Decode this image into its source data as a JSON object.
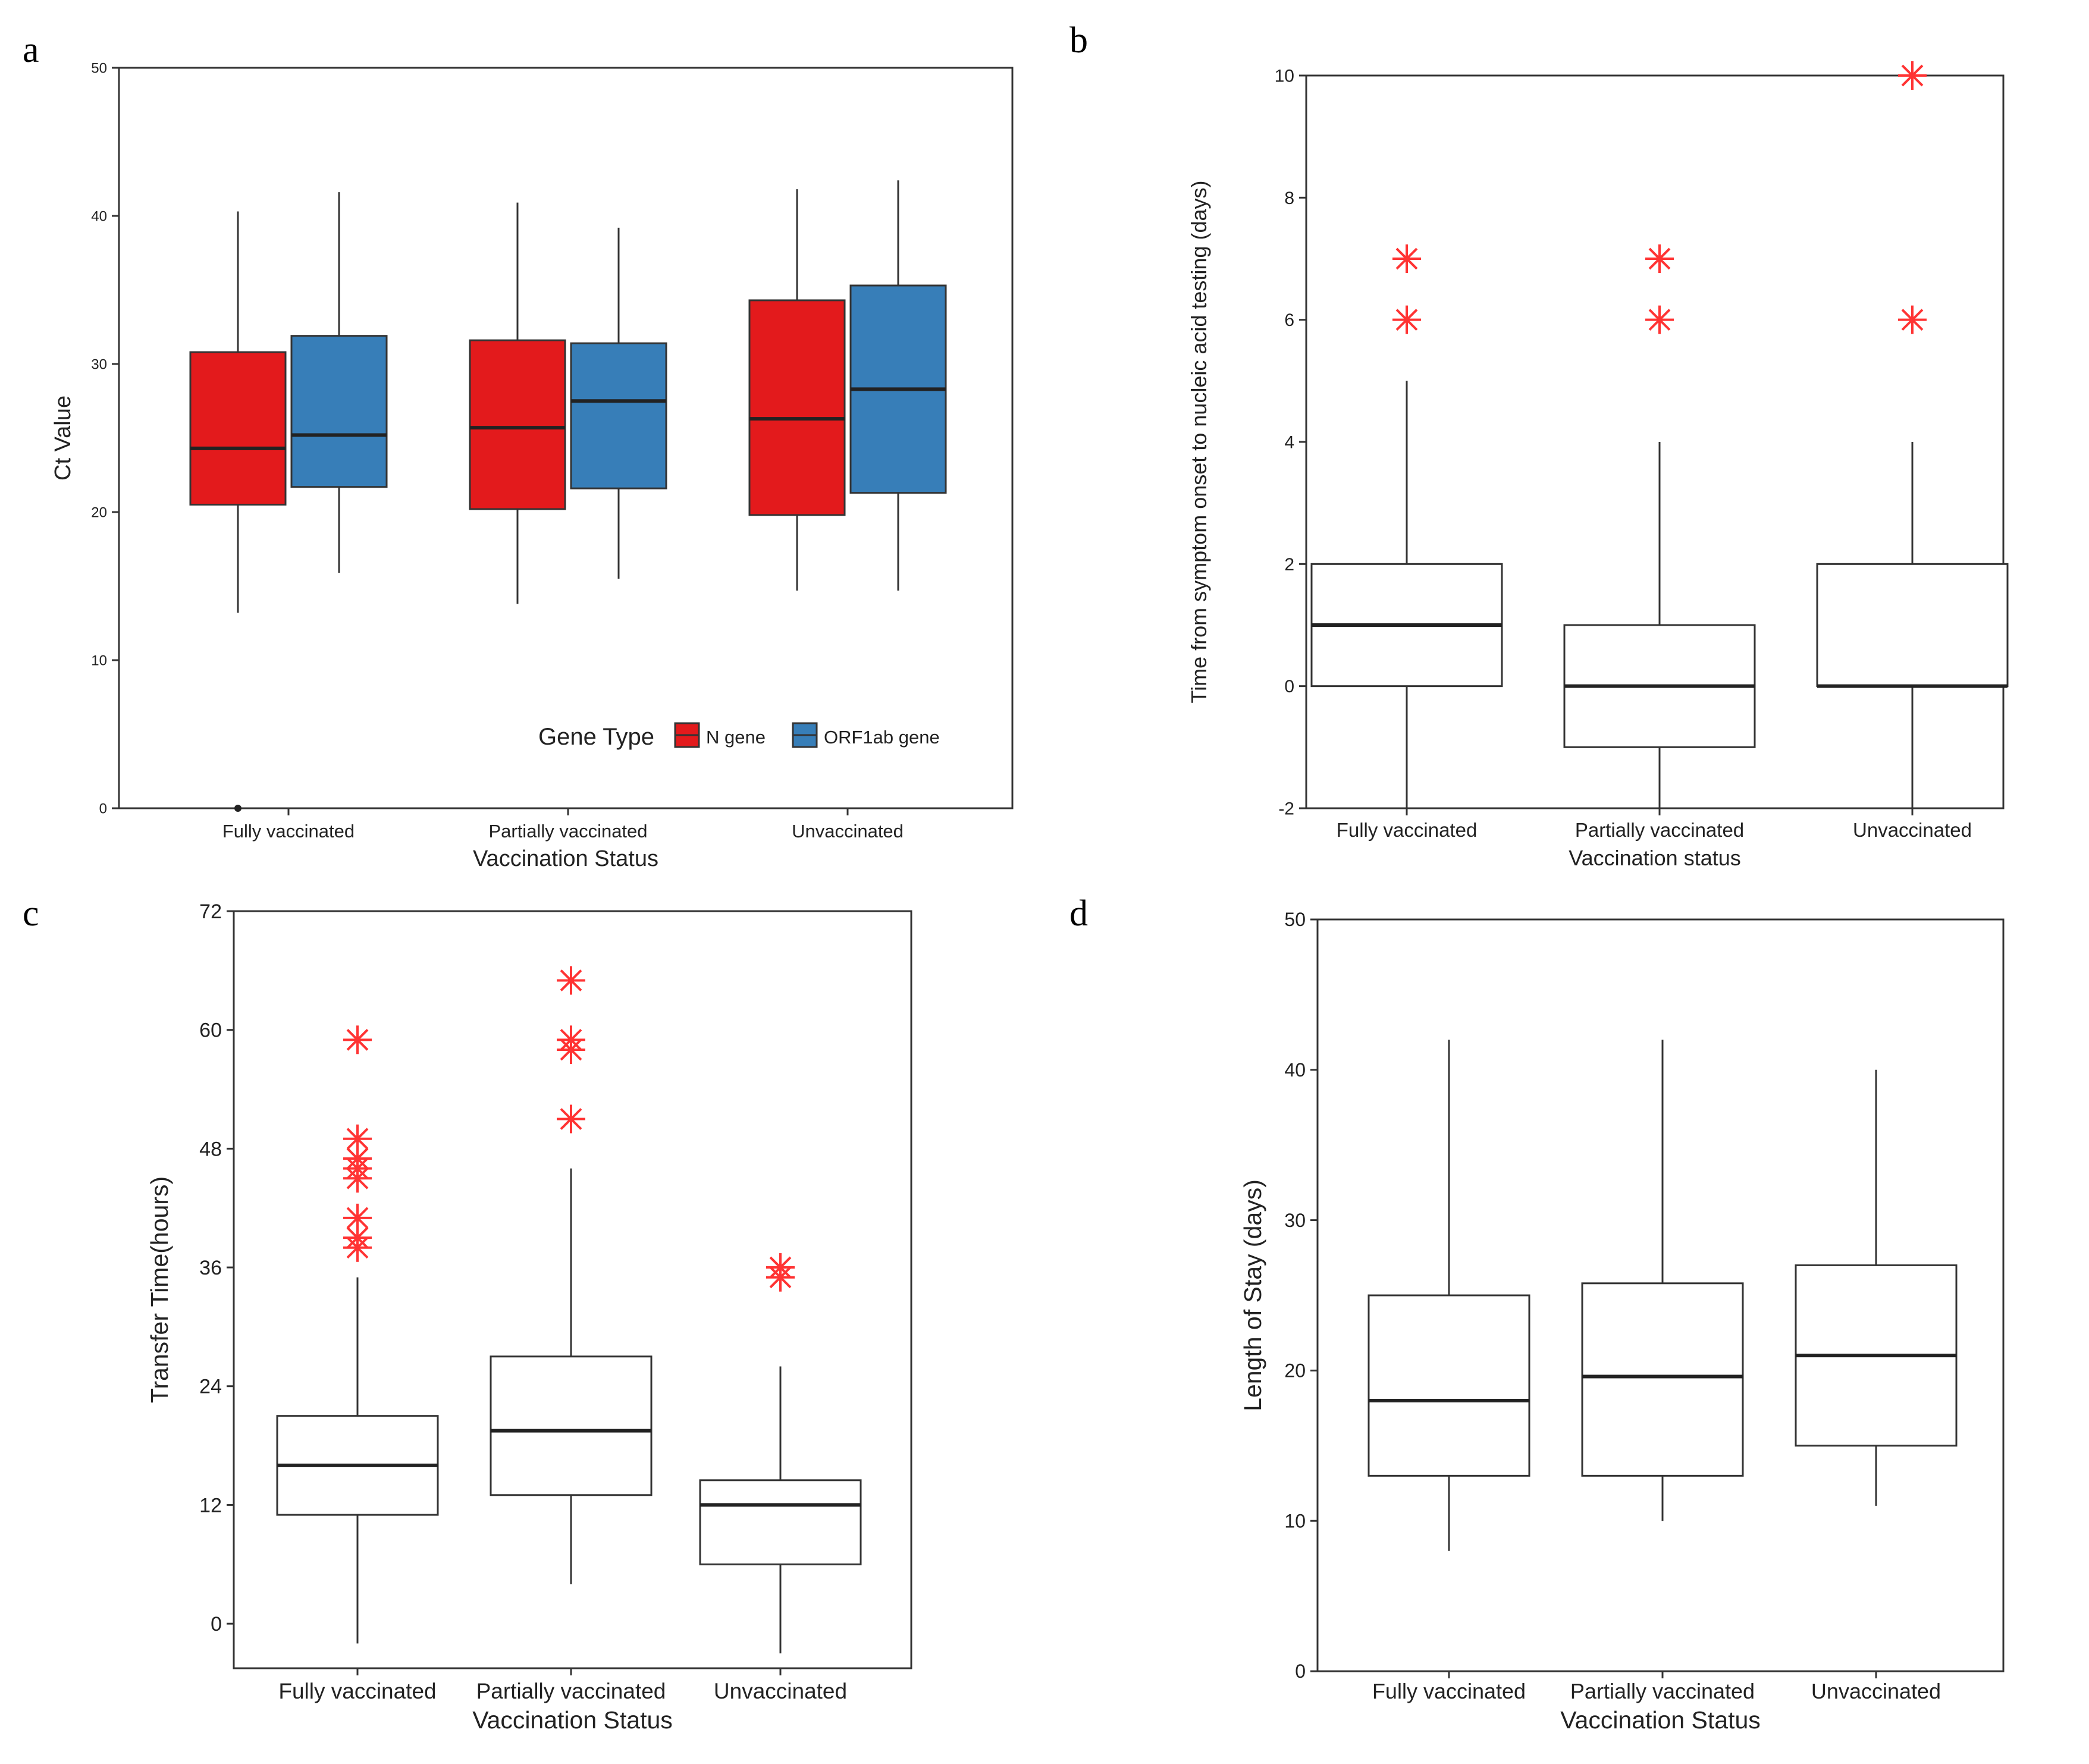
{
  "chart_data": [
    {
      "panel": "a",
      "type": "box",
      "xlabel": "Vaccination Status",
      "ylabel": "Ct Value",
      "ylim": [
        0,
        50
      ],
      "yticks": [
        "0",
        "10",
        "20",
        "30",
        "40",
        "50"
      ],
      "categories": [
        "Fully vaccinated",
        "Partially vaccinated",
        "Unvaccinated"
      ],
      "legend": {
        "title": "Gene Type",
        "position": "bottom-right"
      },
      "series": [
        {
          "name": "N gene",
          "color": "#e31a1c",
          "boxes": [
            {
              "min": 13.2,
              "q1": 20.5,
              "median": 24.3,
              "q3": 30.8,
              "max": 40.3,
              "outliers": [
                0
              ]
            },
            {
              "min": 13.8,
              "q1": 20.2,
              "median": 25.7,
              "q3": 31.6,
              "max": 40.9,
              "outliers": []
            },
            {
              "min": 14.7,
              "q1": 19.8,
              "median": 26.3,
              "q3": 34.3,
              "max": 41.8,
              "outliers": []
            }
          ]
        },
        {
          "name": "ORF1ab gene",
          "color": "#377eb8",
          "boxes": [
            {
              "min": 15.9,
              "q1": 21.7,
              "median": 25.2,
              "q3": 31.9,
              "max": 41.6,
              "outliers": []
            },
            {
              "min": 15.5,
              "q1": 21.6,
              "median": 27.5,
              "q3": 31.4,
              "max": 39.2,
              "outliers": []
            },
            {
              "min": 14.7,
              "q1": 21.3,
              "median": 28.3,
              "q3": 35.3,
              "max": 42.4,
              "outliers": []
            }
          ]
        }
      ]
    },
    {
      "panel": "b",
      "type": "box",
      "xlabel": "Vaccination status",
      "ylabel": "Time from symptom onset to nucleic acid testing (days)",
      "ylim": [
        -2,
        10
      ],
      "yticks": [
        "-2",
        "0",
        "2",
        "4",
        "6",
        "8",
        "10"
      ],
      "categories": [
        "Fully vaccinated",
        "Partially vaccinated",
        "Unvaccinated"
      ],
      "outlier_color": "#ff3333",
      "boxes": [
        {
          "min": -2,
          "q1": 0,
          "median": 1,
          "q3": 2,
          "max": 5,
          "outliers": [
            6,
            7
          ]
        },
        {
          "min": -2,
          "q1": -1,
          "median": 0,
          "q3": 1,
          "max": 4,
          "outliers": [
            6,
            7
          ]
        },
        {
          "min": -2,
          "q1": 0,
          "median": 0,
          "q3": 2,
          "max": 4,
          "outliers": [
            6,
            10
          ]
        }
      ]
    },
    {
      "panel": "c",
      "type": "box",
      "xlabel": "Vaccination Status",
      "ylabel": "Transfer Time(hours)",
      "ylim": [
        -4.5,
        72
      ],
      "yticks": [
        "0",
        "12",
        "24",
        "36",
        "48",
        "60",
        "72"
      ],
      "categories": [
        "Fully vaccinated",
        "Partially vaccinated",
        "Unvaccinated"
      ],
      "outlier_color": "#ff3333",
      "boxes": [
        {
          "min": -2,
          "q1": 11,
          "median": 16,
          "q3": 21,
          "max": 35,
          "outliers": [
            38,
            39,
            41,
            45,
            46,
            47,
            49,
            59
          ]
        },
        {
          "min": 4,
          "q1": 13,
          "median": 19.5,
          "q3": 27,
          "max": 46,
          "outliers": [
            51,
            58,
            59,
            65
          ]
        },
        {
          "min": -3,
          "q1": 6,
          "median": 12,
          "q3": 14.5,
          "max": 26,
          "outliers": [
            35,
            36
          ]
        }
      ]
    },
    {
      "panel": "d",
      "type": "box",
      "xlabel": "Vaccination Status",
      "ylabel": "Length of Stay (days)",
      "ylim": [
        0,
        50
      ],
      "yticks": [
        "0",
        "10",
        "20",
        "30",
        "40",
        "50"
      ],
      "categories": [
        "Fully vaccinated",
        "Partially vaccinated",
        "Unvaccinated"
      ],
      "boxes": [
        {
          "min": 8,
          "q1": 13,
          "median": 18,
          "q3": 25,
          "max": 42,
          "outliers": []
        },
        {
          "min": 10,
          "q1": 13,
          "median": 19.6,
          "q3": 25.8,
          "max": 42,
          "outliers": []
        },
        {
          "min": 11,
          "q1": 15,
          "median": 21,
          "q3": 27,
          "max": 40,
          "outliers": []
        }
      ]
    }
  ]
}
